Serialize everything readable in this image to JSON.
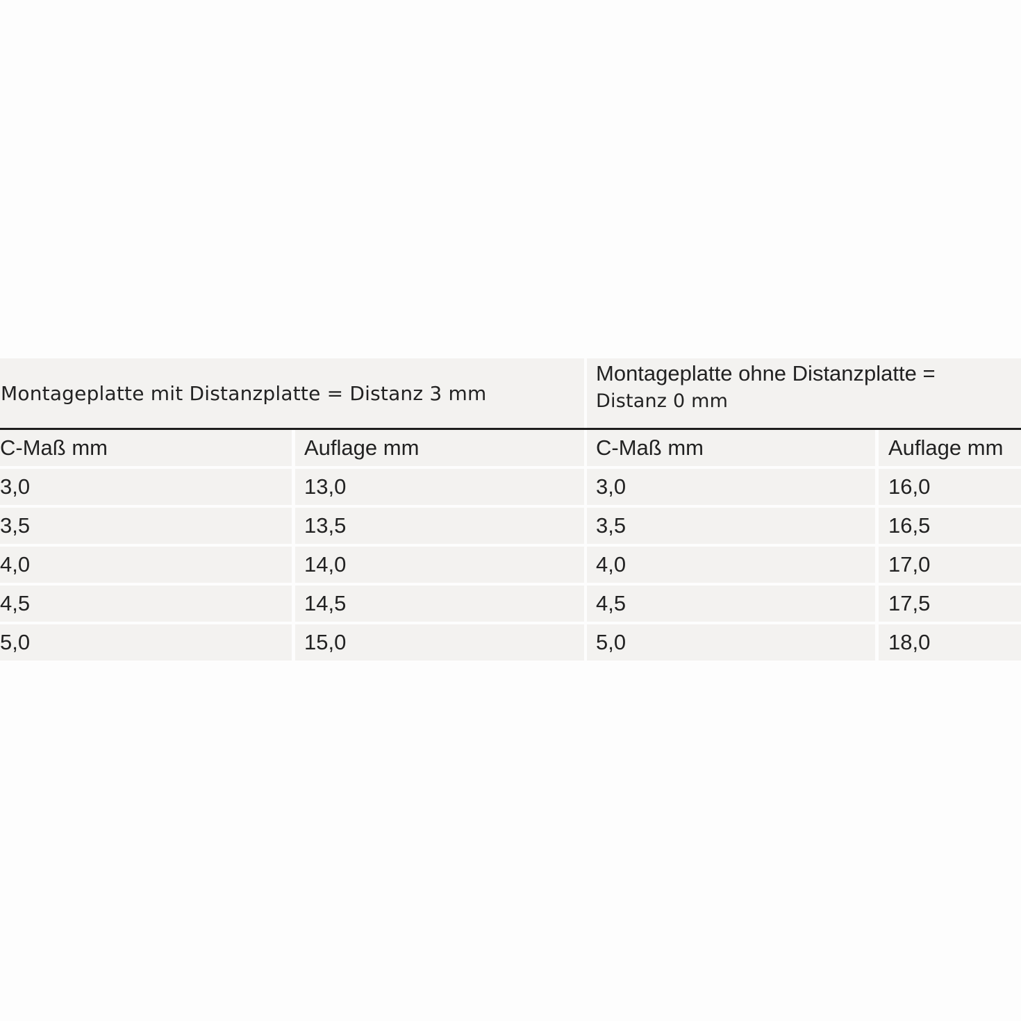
{
  "table": {
    "groups": [
      {
        "line1": "Montageplatte mit Distanzplatte = Distanz 3 mm"
      },
      {
        "line1": "Montageplatte ohne Distanzplatte =",
        "line2": "Distanz 0 mm"
      }
    ],
    "columns": [
      "C-Maß mm",
      "Auflage mm",
      "C-Maß mm",
      "Auflage mm"
    ],
    "rows": [
      [
        "3,0",
        "13,0",
        "3,0",
        "16,0"
      ],
      [
        "3,5",
        "13,5",
        "3,5",
        "16,5"
      ],
      [
        "4,0",
        "14,0",
        "4,0",
        "17,0"
      ],
      [
        "4,5",
        "14,5",
        "4,5",
        "17,5"
      ],
      [
        "5,0",
        "15,0",
        "5,0",
        "18,0"
      ]
    ]
  }
}
